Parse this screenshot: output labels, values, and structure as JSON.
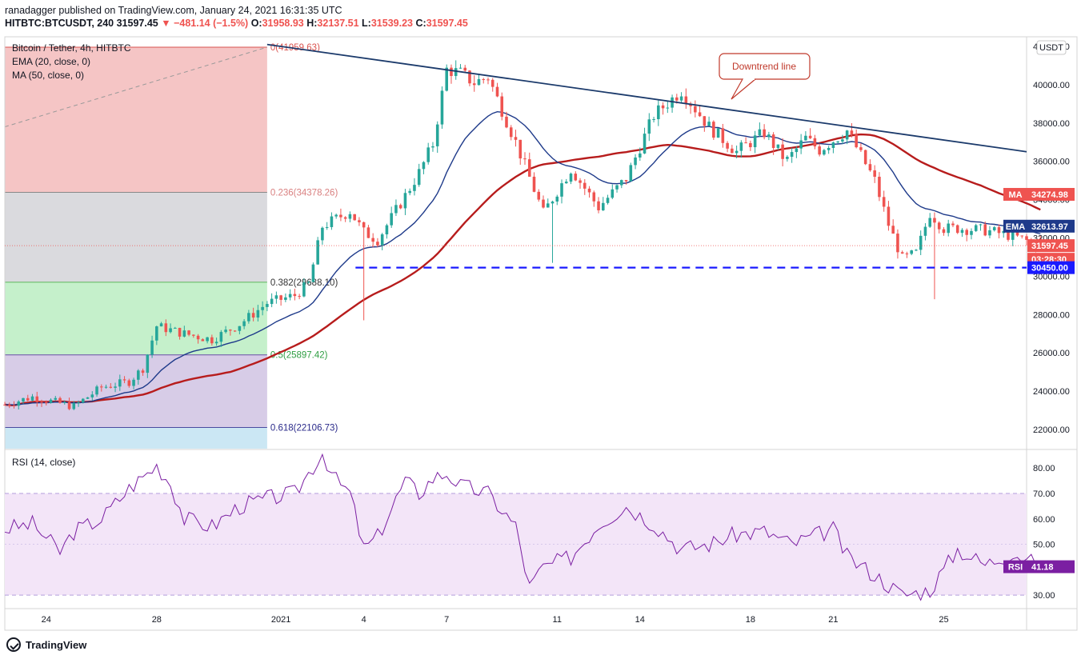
{
  "header": {
    "publisher_line": "ranadagger published on TradingView.com, January 24, 2021 16:31:35 UTC",
    "symbol_code": "HITBTC:BTCUSDT, 240",
    "last_price": "31597.45",
    "change": "−481.14 (−1.5%)",
    "open_label": "O:",
    "open": "31958.93",
    "high_label": "H:",
    "high": "32137.51",
    "low_label": "L:",
    "low": "31539.23",
    "close_label": "C:",
    "close": "31597.45"
  },
  "legend": {
    "symbol_title": "Bitcoin / Tether, 4h, HITBTC",
    "ema_label": "EMA (20, close, 0)",
    "ma_label": "MA (50, close, 0)",
    "rsi_label": "RSI (14, close)"
  },
  "annotation": {
    "downtrend_label": "Downtrend line"
  },
  "colors": {
    "bull": "#26a69a",
    "bear": "#ef5350",
    "ema": "#1e3a8a",
    "ma": "#b71c1c",
    "rsi": "#7b1fa2",
    "trendline": "#1b3a6b",
    "support": "#1a1aff"
  },
  "chart_data": [
    {
      "type": "candlestick",
      "title": "Bitcoin / Tether, 4h, HITBTC",
      "currency": "USDT",
      "ylim": [
        21000,
        42500
      ],
      "y_ticks": [
        "42000.00",
        "40000.00",
        "38000.00",
        "36000.00",
        "34000.00",
        "32000.00",
        "30000.00",
        "28000.00",
        "26000.00",
        "24000.00",
        "22000.00"
      ],
      "y_tick_values": [
        42000,
        40000,
        38000,
        36000,
        34000,
        32000,
        30000,
        28000,
        26000,
        24000,
        22000
      ],
      "x_ticks": [
        "24",
        "28",
        "2021",
        "4",
        "7",
        "11",
        "14",
        "18",
        "21",
        "25"
      ],
      "x_tick_days": [
        0,
        4,
        8.5,
        11.5,
        14.5,
        18.5,
        21.5,
        25.5,
        28.5,
        32.5
      ],
      "x_range_days": [
        -1.5,
        35.5
      ],
      "ohlc_anchors": {
        "day": [
          -1.5,
          -0.5,
          1,
          2,
          3,
          3.5,
          4,
          5,
          6,
          7,
          8,
          9,
          9.5,
          10,
          11,
          11.5,
          12,
          13,
          13.5,
          14,
          14.5,
          15,
          15.5,
          16,
          17,
          18,
          19,
          20,
          21,
          22,
          23,
          24,
          25,
          26,
          26.8,
          27.5,
          28,
          29,
          30,
          30.5,
          31,
          31.5,
          32,
          32.5,
          33,
          34,
          35,
          36
        ],
        "price": [
          23300,
          23700,
          23200,
          24200,
          24500,
          25200,
          27400,
          27000,
          26700,
          27500,
          28600,
          29000,
          29600,
          32600,
          33400,
          32300,
          31900,
          34200,
          35400,
          36900,
          40800,
          40600,
          40100,
          40400,
          37000,
          33300,
          35600,
          33600,
          35100,
          38400,
          39700,
          37800,
          36500,
          37500,
          36000,
          37200,
          36600,
          37600,
          35000,
          32700,
          30900,
          31200,
          33300,
          32500,
          32500,
          32400,
          32100,
          31600
        ]
      },
      "close_series_note": "",
      "fibonacci": [
        {
          "level": "0",
          "price": 41959.63,
          "label": "0(41959.63)"
        },
        {
          "level": "0.236",
          "price": 34378.26,
          "label": "0.236(34378.26)"
        },
        {
          "level": "0.382",
          "price": 29688.1,
          "label": "0.382(29688.10)"
        },
        {
          "level": "0.5",
          "price": 25897.42,
          "label": "0.5(25897.42)"
        },
        {
          "level": "0.618",
          "price": 22106.73,
          "label": "0.618(22106.73)"
        }
      ],
      "support_level": 30450,
      "downtrend_line": {
        "start": [
          8.0,
          42100
        ],
        "end": [
          35.5,
          36500
        ]
      },
      "price_badges": [
        {
          "name": "MA",
          "label": "MA",
          "value": "34274.98",
          "price": 34274.98,
          "color": "#ef5350"
        },
        {
          "name": "EMA",
          "label": "EMA",
          "value": "32613.97",
          "price": 32613.97,
          "color": "#1e3a8a"
        },
        {
          "name": "last",
          "label": "",
          "value": "31597.45",
          "price": 31597.45,
          "color": "#ef5350"
        },
        {
          "name": "countdown",
          "label": "",
          "value": "03:28:30",
          "price": 30900,
          "color": "#ef5350"
        },
        {
          "name": "support",
          "label": "",
          "value": "30450.00",
          "price": 30450,
          "color": "#1a1aff"
        }
      ]
    },
    {
      "type": "line",
      "title": "RSI (14, close)",
      "ylim": [
        25,
        87
      ],
      "y_ticks": [
        "80.00",
        "70.00",
        "60.00",
        "50.00",
        "40.00",
        "30.00"
      ],
      "y_tick_values": [
        80,
        70,
        60,
        50,
        40,
        30
      ],
      "band": [
        30,
        70
      ],
      "x": [
        -1.5,
        -0.5,
        0.5,
        1,
        2,
        3,
        4,
        4.5,
        5,
        6,
        7,
        8,
        9,
        10,
        10.5,
        11,
        11.5,
        12,
        13,
        13.5,
        14,
        14.5,
        15,
        16,
        17,
        17.5,
        18,
        19,
        20,
        21,
        22,
        23,
        24,
        25,
        26,
        27,
        28,
        28.5,
        29,
        30,
        31,
        32,
        33,
        34,
        35,
        36
      ],
      "values": [
        56,
        58,
        47,
        55,
        60,
        72,
        81,
        74,
        60,
        57,
        65,
        68,
        70,
        86,
        75,
        70,
        48,
        53,
        75,
        70,
        76,
        78,
        73,
        70,
        57,
        33,
        41,
        45,
        58,
        65,
        58,
        48,
        50,
        54,
        55,
        50,
        54,
        56,
        45,
        38,
        30,
        32,
        48,
        42,
        47,
        41
      ],
      "last_value": "41.18",
      "badge_label": "RSI"
    }
  ]
}
